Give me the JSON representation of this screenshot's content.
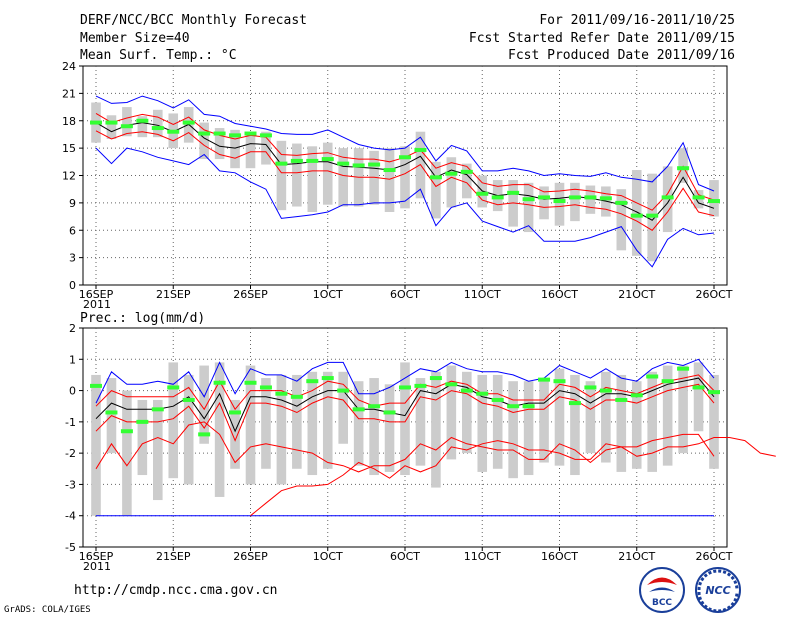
{
  "header": {
    "title": "DERF/NCC/BCC Monthly Forecast",
    "member_size": "Member Size=40",
    "variable": "Mean Surf. Temp.: °C",
    "period": "For 2011/09/16-2011/10/25",
    "started": "Fcst Started Refer Date 2011/09/15",
    "produced": "Fcst Produced Date 2011/09/16"
  },
  "footer": {
    "url": "http://cmdp.ncc.cma.gov.cn",
    "grads": "GrADS: COLA/IGES",
    "logo1": "BCC",
    "logo2": "NCC"
  },
  "colors": {
    "env_max": "#0000ff",
    "ens_mean": "#000000",
    "spread": "#ff0000",
    "box": "#cccccc",
    "median": "#33ff33",
    "grid": "#888888"
  },
  "chart_data": [
    {
      "type": "line",
      "title": "Mean Surf. Temp.: °C",
      "x_labels": [
        "16SEP\n2011",
        "21SEP",
        "26SEP",
        "1OCT",
        "6OCT",
        "11OCT",
        "16OCT",
        "21OCT",
        "26OCT"
      ],
      "x_label_days": [
        0,
        5,
        10,
        15,
        20,
        25,
        30,
        35,
        40
      ],
      "ylim": [
        0,
        24
      ],
      "yticks": [
        0,
        3,
        6,
        9,
        12,
        15,
        18,
        21,
        24
      ],
      "days": 40,
      "series": [
        {
          "name": "max",
          "color": "blue",
          "values": [
            20.7,
            19.9,
            20.0,
            20.7,
            20.2,
            19.4,
            20.3,
            18.7,
            18.5,
            17.7,
            17.4,
            17.1,
            16.6,
            16.5,
            16.5,
            17.0,
            16.2,
            15.4,
            15.0,
            14.8,
            15.0,
            16.2,
            13.6,
            15.3,
            14.7,
            12.5,
            12.5,
            12.8,
            12.5,
            12.0,
            12.2,
            12.0,
            11.9,
            12.3,
            11.8,
            11.6,
            11.3,
            13.0,
            15.6,
            11.0,
            10.3,
            11.0
          ]
        },
        {
          "name": "upper",
          "color": "red",
          "values": [
            18.8,
            17.8,
            18.3,
            18.7,
            18.4,
            17.6,
            18.4,
            17.0,
            16.4,
            16.0,
            16.4,
            16.2,
            14.3,
            14.2,
            14.4,
            14.5,
            14.0,
            13.8,
            13.8,
            13.5,
            14.0,
            14.8,
            12.8,
            13.4,
            13.0,
            11.2,
            10.8,
            11.0,
            11.0,
            10.2,
            10.3,
            10.5,
            10.3,
            10.0,
            9.8,
            9.0,
            8.2,
            10.0,
            13.0,
            9.9,
            9.3,
            9.9
          ]
        },
        {
          "name": "mean",
          "color": "black",
          "values": [
            17.8,
            16.8,
            17.5,
            17.8,
            17.5,
            16.8,
            17.6,
            16.1,
            15.2,
            15.0,
            15.5,
            15.4,
            13.2,
            13.3,
            13.5,
            13.5,
            13.0,
            12.9,
            12.8,
            12.6,
            13.2,
            14.1,
            11.8,
            12.6,
            12.1,
            10.3,
            9.8,
            10.0,
            9.8,
            9.4,
            9.5,
            9.7,
            9.5,
            9.2,
            8.8,
            8.0,
            7.1,
            9.0,
            11.8,
            9.0,
            8.4,
            9.0
          ]
        },
        {
          "name": "lower",
          "color": "red",
          "values": [
            16.9,
            16.0,
            16.6,
            16.8,
            16.5,
            15.8,
            16.7,
            15.3,
            14.3,
            13.9,
            14.6,
            14.6,
            12.3,
            12.3,
            12.5,
            12.5,
            12.0,
            11.8,
            11.8,
            11.6,
            12.2,
            13.2,
            10.8,
            11.8,
            11.2,
            9.3,
            8.8,
            9.0,
            8.8,
            8.5,
            8.6,
            8.8,
            8.5,
            8.3,
            7.8,
            7.0,
            6.0,
            8.0,
            10.6,
            8.0,
            7.6,
            8.1
          ]
        },
        {
          "name": "min",
          "color": "blue",
          "values": [
            15.0,
            13.3,
            15.0,
            14.6,
            14.0,
            13.6,
            13.2,
            14.3,
            12.5,
            12.3,
            11.3,
            10.5,
            7.3,
            7.5,
            7.7,
            8.0,
            8.8,
            8.8,
            9.0,
            9.0,
            9.2,
            10.5,
            6.5,
            8.5,
            9.0,
            7.0,
            6.4,
            5.8,
            6.5,
            4.8,
            4.8,
            4.8,
            5.2,
            5.8,
            6.4,
            3.8,
            2.0,
            5.0,
            6.2,
            5.5,
            5.7,
            5.4
          ]
        }
      ],
      "boxes": {
        "start_day": 0,
        "low": [
          15.6,
          16.0,
          16.3,
          16.2,
          16.2,
          15.0,
          15.6,
          13.8,
          13.8,
          12.8,
          12.8,
          13.2,
          8.2,
          8.6,
          8.0,
          8.8,
          8.6,
          8.6,
          8.8,
          8.0,
          8.4,
          9.5,
          7.3,
          8.5,
          9.5,
          8.5,
          8.1,
          6.4,
          5.8,
          7.2,
          6.5,
          7.0,
          7.8,
          7.5,
          3.8,
          3.2,
          2.6,
          5.8,
          11.2,
          8.4,
          7.5,
          8.0
        ],
        "high": [
          20.0,
          18.6,
          19.5,
          18.5,
          19.2,
          18.8,
          19.5,
          17.8,
          17.2,
          17.0,
          16.5,
          16.8,
          15.8,
          15.5,
          15.2,
          15.6,
          15.0,
          15.0,
          14.7,
          15.0,
          15.2,
          16.8,
          13.5,
          14.0,
          13.3,
          12.0,
          11.5,
          11.5,
          11.2,
          10.8,
          11.2,
          11.2,
          10.9,
          10.8,
          10.5,
          12.6,
          12.2,
          13.0,
          15.0,
          10.4,
          11.5,
          12.0
        ],
        "median": [
          17.8,
          17.8,
          17.4,
          18.0,
          17.2,
          16.8,
          17.8,
          16.6,
          16.6,
          16.4,
          16.6,
          16.4,
          13.3,
          13.6,
          13.6,
          13.8,
          13.3,
          13.1,
          13.2,
          12.6,
          14.0,
          14.8,
          11.8,
          12.2,
          12.4,
          10.0,
          9.6,
          10.1,
          9.4,
          9.6,
          9.2,
          9.6,
          9.6,
          9.5,
          9.0,
          7.6,
          7.6,
          9.6,
          12.8,
          9.6,
          9.2,
          9.4
        ]
      }
    },
    {
      "type": "line",
      "title": "Prec.: log(mm/d)",
      "x_labels": [
        "16SEP\n2011",
        "21SEP",
        "26SEP",
        "1OCT",
        "6OCT",
        "11OCT",
        "16OCT",
        "21OCT",
        "26OCT"
      ],
      "x_label_days": [
        0,
        5,
        10,
        15,
        20,
        25,
        30,
        35,
        40
      ],
      "ylim": [
        -5,
        2
      ],
      "yticks": [
        -5,
        -4,
        -3,
        -2,
        -1,
        0,
        1,
        2
      ],
      "days": 40,
      "series": [
        {
          "name": "max",
          "color": "blue",
          "values": [
            -0.4,
            0.6,
            0.2,
            0.2,
            0.3,
            0.2,
            0.6,
            -0.2,
            0.9,
            -0.1,
            0.7,
            0.5,
            0.5,
            0.3,
            0.7,
            0.9,
            0.9,
            -0.1,
            -0.1,
            0.1,
            0.4,
            0.7,
            0.6,
            0.9,
            0.7,
            0.6,
            0.6,
            0.5,
            0.3,
            0.4,
            0.8,
            0.6,
            0.4,
            0.7,
            0.4,
            0.3,
            0.7,
            0.9,
            0.8,
            1.0,
            0.4,
            0.4
          ]
        },
        {
          "name": "upper",
          "color": "red",
          "values": [
            -0.5,
            0.0,
            -0.2,
            -0.2,
            -0.2,
            -0.2,
            0.1,
            -0.6,
            0.3,
            -0.6,
            0.0,
            0.0,
            0.0,
            -0.2,
            0.0,
            0.3,
            0.2,
            -0.3,
            -0.5,
            -0.4,
            -0.4,
            0.2,
            0.1,
            0.3,
            0.2,
            -0.1,
            -0.1,
            -0.3,
            -0.3,
            -0.3,
            0.2,
            0.1,
            -0.2,
            0.1,
            0.0,
            -0.1,
            0.1,
            0.3,
            0.4,
            0.5,
            0.0,
            0.0
          ]
        },
        {
          "name": "mean",
          "color": "black",
          "values": [
            -0.9,
            -0.4,
            -0.6,
            -0.6,
            -0.6,
            -0.5,
            -0.2,
            -0.9,
            -0.1,
            -1.3,
            -0.2,
            -0.2,
            -0.3,
            -0.5,
            -0.2,
            0.0,
            0.0,
            -0.6,
            -0.6,
            -0.7,
            -0.8,
            0.0,
            -0.1,
            0.2,
            0.1,
            -0.2,
            -0.3,
            -0.5,
            -0.4,
            -0.4,
            0.0,
            -0.1,
            -0.4,
            -0.1,
            -0.1,
            -0.2,
            0.0,
            0.2,
            0.3,
            0.4,
            -0.2,
            -0.2
          ]
        },
        {
          "name": "lower",
          "color": "red",
          "values": [
            -1.3,
            -0.8,
            -1.0,
            -1.0,
            -1.0,
            -0.9,
            -0.5,
            -1.2,
            -0.4,
            -1.6,
            -0.4,
            -0.4,
            -0.5,
            -0.7,
            -0.4,
            -0.2,
            -0.3,
            -0.9,
            -0.9,
            -1.0,
            -1.0,
            -0.2,
            -0.3,
            0.0,
            -0.1,
            -0.4,
            -0.5,
            -0.7,
            -0.6,
            -0.6,
            -0.2,
            -0.3,
            -0.6,
            -0.3,
            -0.3,
            -0.4,
            -0.2,
            0.0,
            0.1,
            0.2,
            -0.4,
            -0.4
          ]
        },
        {
          "name": "min",
          "color": "red",
          "values": [
            -2.5,
            -1.7,
            -2.4,
            -1.7,
            -1.5,
            -1.7,
            -1.1,
            -1.0,
            -1.4,
            -2.3,
            -1.8,
            -1.7,
            -1.8,
            -1.9,
            -2.0,
            -2.3,
            -2.4,
            -2.6,
            -2.4,
            -2.4,
            -2.2,
            -1.7,
            -1.9,
            -1.5,
            -1.7,
            -1.8,
            -1.9,
            -1.9,
            -2.2,
            -2.2,
            -1.7,
            -1.9,
            -2.3,
            -1.9,
            -1.8,
            -1.8,
            -1.6,
            -1.5,
            -1.4,
            -1.4,
            -2.1,
            -2.0
          ]
        }
      ],
      "lower_bound": {
        "name": "floor",
        "color": "red",
        "start_day": 10,
        "values": [
          -4.0,
          -3.6,
          -3.2,
          -3.05,
          -3.05,
          -3.0,
          -2.7,
          -2.3,
          -2.5,
          -2.8,
          -2.4,
          -2.6,
          -2.4,
          -1.8,
          -1.9,
          -1.7,
          -1.6,
          -1.7,
          -1.9,
          -1.9,
          -2.0,
          -2.2,
          -2.2,
          -1.7,
          -1.8,
          -2.1,
          -2.0,
          -1.8,
          -1.8,
          -1.7,
          -1.5,
          -1.5,
          -1.6,
          -2.0,
          -2.1
        ]
      },
      "boxes": {
        "start_day": 0,
        "low": [
          -4.0,
          -2.0,
          -4.0,
          -2.7,
          -3.5,
          -2.8,
          -3.0,
          -1.7,
          -3.4,
          -2.5,
          -3.0,
          -2.5,
          -3.0,
          -2.5,
          -2.7,
          -2.5,
          -1.7,
          -2.4,
          -2.7,
          -2.6,
          -2.7,
          -2.4,
          -3.1,
          -2.2,
          -2.0,
          -2.6,
          -2.5,
          -2.8,
          -2.7,
          -2.3,
          -2.4,
          -2.7,
          -2.0,
          -2.3,
          -2.6,
          -2.5,
          -2.6,
          -2.4,
          -2.0,
          -1.3,
          -2.5,
          -1.5
        ],
        "high": [
          0.5,
          0.4,
          0.0,
          -0.3,
          -0.3,
          0.9,
          0.5,
          0.8,
          0.9,
          -0.3,
          0.8,
          0.4,
          0.5,
          0.5,
          0.6,
          0.6,
          0.6,
          0.3,
          0.4,
          0.2,
          0.9,
          0.4,
          0.6,
          0.8,
          0.6,
          0.5,
          0.5,
          0.3,
          0.3,
          0.4,
          0.7,
          0.5,
          0.3,
          0.6,
          0.5,
          0.3,
          0.6,
          0.8,
          0.8,
          0.9,
          0.5,
          0.5
        ],
        "median": [
          0.15,
          -0.7,
          -1.3,
          -1.0,
          -0.6,
          0.1,
          -0.3,
          -1.4,
          0.25,
          -0.7,
          0.25,
          0.1,
          -0.1,
          -0.2,
          0.3,
          0.4,
          0.0,
          -0.6,
          -0.5,
          -0.7,
          0.1,
          0.15,
          0.4,
          0.2,
          0.0,
          -0.1,
          -0.3,
          -0.5,
          -0.5,
          0.35,
          0.3,
          -0.4,
          0.1,
          0.0,
          -0.3,
          -0.15,
          0.45,
          0.3,
          0.7,
          0.1,
          -0.05,
          -0.05
        ]
      }
    }
  ]
}
